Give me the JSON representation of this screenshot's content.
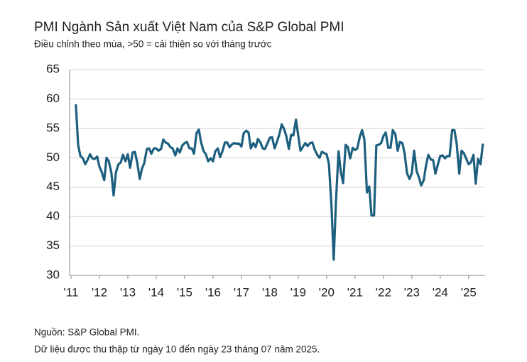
{
  "chart_data": {
    "type": "line",
    "title": "PMI Ngành Sản xuất Việt Nam của S&P Global PMI",
    "subtitle": "Điều chỉnh theo mùa, >50 = cải thiện so với tháng trước",
    "notes": [
      "Nguồn: S&P Global PMI.",
      "Dữ liệu được thu thập từ ngày 10 đến ngày 23 tháng 07 năm 2025."
    ],
    "color": "#1d5f7f",
    "grid": true,
    "ylim": [
      30,
      65
    ],
    "yticks": [
      30,
      35,
      40,
      45,
      50,
      55,
      60,
      65
    ],
    "xlim": [
      2010.95,
      2025.58
    ],
    "xticks": [
      {
        "value": 2011,
        "label": "'11"
      },
      {
        "value": 2012,
        "label": "'12"
      },
      {
        "value": 2013,
        "label": "'13"
      },
      {
        "value": 2014,
        "label": "'14"
      },
      {
        "value": 2015,
        "label": "'15"
      },
      {
        "value": 2016,
        "label": "'16"
      },
      {
        "value": 2017,
        "label": "'17"
      },
      {
        "value": 2018,
        "label": "'18"
      },
      {
        "value": 2019,
        "label": "'19"
      },
      {
        "value": 2020,
        "label": "'20"
      },
      {
        "value": 2021,
        "label": "'21"
      },
      {
        "value": 2022,
        "label": "'22"
      },
      {
        "value": 2023,
        "label": "'23"
      },
      {
        "value": 2024,
        "label": "'24"
      },
      {
        "value": 2025,
        "label": "'25"
      }
    ],
    "x": [
      2011.17,
      2011.25,
      2011.33,
      2011.42,
      2011.5,
      2011.58,
      2011.67,
      2011.75,
      2011.83,
      2011.92,
      2012,
      2012.08,
      2012.17,
      2012.25,
      2012.33,
      2012.42,
      2012.5,
      2012.58,
      2012.67,
      2012.75,
      2012.83,
      2012.92,
      2013,
      2013.08,
      2013.17,
      2013.25,
      2013.33,
      2013.42,
      2013.5,
      2013.58,
      2013.67,
      2013.75,
      2013.83,
      2013.92,
      2014,
      2014.08,
      2014.17,
      2014.25,
      2014.33,
      2014.42,
      2014.5,
      2014.58,
      2014.67,
      2014.75,
      2014.83,
      2014.92,
      2015,
      2015.08,
      2015.17,
      2015.25,
      2015.33,
      2015.42,
      2015.5,
      2015.58,
      2015.67,
      2015.75,
      2015.83,
      2015.92,
      2016,
      2016.08,
      2016.17,
      2016.25,
      2016.33,
      2016.42,
      2016.5,
      2016.58,
      2016.67,
      2016.75,
      2016.83,
      2016.92,
      2017,
      2017.08,
      2017.17,
      2017.25,
      2017.33,
      2017.42,
      2017.5,
      2017.58,
      2017.67,
      2017.75,
      2017.83,
      2017.92,
      2018,
      2018.08,
      2018.17,
      2018.25,
      2018.33,
      2018.42,
      2018.5,
      2018.58,
      2018.67,
      2018.75,
      2018.83,
      2018.92,
      2019,
      2019.08,
      2019.17,
      2019.25,
      2019.33,
      2019.42,
      2019.5,
      2019.58,
      2019.67,
      2019.75,
      2019.83,
      2019.92,
      2020,
      2020.08,
      2020.17,
      2020.25,
      2020.33,
      2020.42,
      2020.5,
      2020.58,
      2020.67,
      2020.75,
      2020.83,
      2020.92,
      2021,
      2021.08,
      2021.17,
      2021.25,
      2021.33,
      2021.42,
      2021.5,
      2021.58,
      2021.67,
      2021.75,
      2021.83,
      2021.92,
      2022,
      2022.08,
      2022.17,
      2022.25,
      2022.33,
      2022.42,
      2022.5,
      2022.58,
      2022.67,
      2022.75,
      2022.83,
      2022.92,
      2023,
      2023.08,
      2023.17,
      2023.25,
      2023.33,
      2023.42,
      2023.5,
      2023.58,
      2023.67,
      2023.75,
      2023.83,
      2023.92,
      2024,
      2024.08,
      2024.17,
      2024.25,
      2024.33,
      2024.42,
      2024.5,
      2024.58,
      2024.67,
      2024.75,
      2024.83,
      2024.92,
      2025,
      2025.08,
      2025.17,
      2025.25,
      2025.33,
      2025.42,
      2025.5
    ],
    "values": [
      59.1,
      52.2,
      50.3,
      49.9,
      48.9,
      49.6,
      50.6,
      49.9,
      49.8,
      50.2,
      48.5,
      47.6,
      46.2,
      50.0,
      49.4,
      47.5,
      43.6,
      47.5,
      48.9,
      49.2,
      50.5,
      49.4,
      50.6,
      48.3,
      50.9,
      51.0,
      49.2,
      46.4,
      48.2,
      49.1,
      51.5,
      51.6,
      50.7,
      51.6,
      51.6,
      51.2,
      51.5,
      53.1,
      52.6,
      52.4,
      51.8,
      51.6,
      50.4,
      51.6,
      50.9,
      52.1,
      52.5,
      52.7,
      51.6,
      51.6,
      50.7,
      54.2,
      54.8,
      52.6,
      51.1,
      50.6,
      49.4,
      49.9,
      49.4,
      51.1,
      51.6,
      50.1,
      51.1,
      52.6,
      52.6,
      51.8,
      52.3,
      52.5,
      52.4,
      52.4,
      51.9,
      54.2,
      54.6,
      54.3,
      51.6,
      52.5,
      51.8,
      53.2,
      52.6,
      51.6,
      51.5,
      52.5,
      53.4,
      53.5,
      51.6,
      52.7,
      53.9,
      55.7,
      54.9,
      53.7,
      51.5,
      53.9,
      53.8,
      56.5,
      53.8,
      51.2,
      51.9,
      52.5,
      52.0,
      52.5,
      52.6,
      51.4,
      50.5,
      50.0,
      51.0,
      50.8,
      50.6,
      49.0,
      41.9,
      32.7,
      42.7,
      51.1,
      47.6,
      45.7,
      52.2,
      51.8,
      49.9,
      51.7,
      51.3,
      51.6,
      53.6,
      54.7,
      53.1,
      44.1,
      45.1,
      40.2,
      40.2,
      52.1,
      52.2,
      52.5,
      53.7,
      54.3,
      51.7,
      51.7,
      54.7,
      54.0,
      51.2,
      52.7,
      52.5,
      50.6,
      47.4,
      46.4,
      47.4,
      51.2,
      47.7,
      46.7,
      45.3,
      46.2,
      48.7,
      50.5,
      49.7,
      49.6,
      47.3,
      48.9,
      50.3,
      50.4,
      49.9,
      50.3,
      50.3,
      54.7,
      54.7,
      52.4,
      47.3,
      51.2,
      50.8,
      49.8,
      48.9,
      49.2,
      50.5,
      45.6,
      49.8,
      48.9,
      52.4
    ]
  }
}
